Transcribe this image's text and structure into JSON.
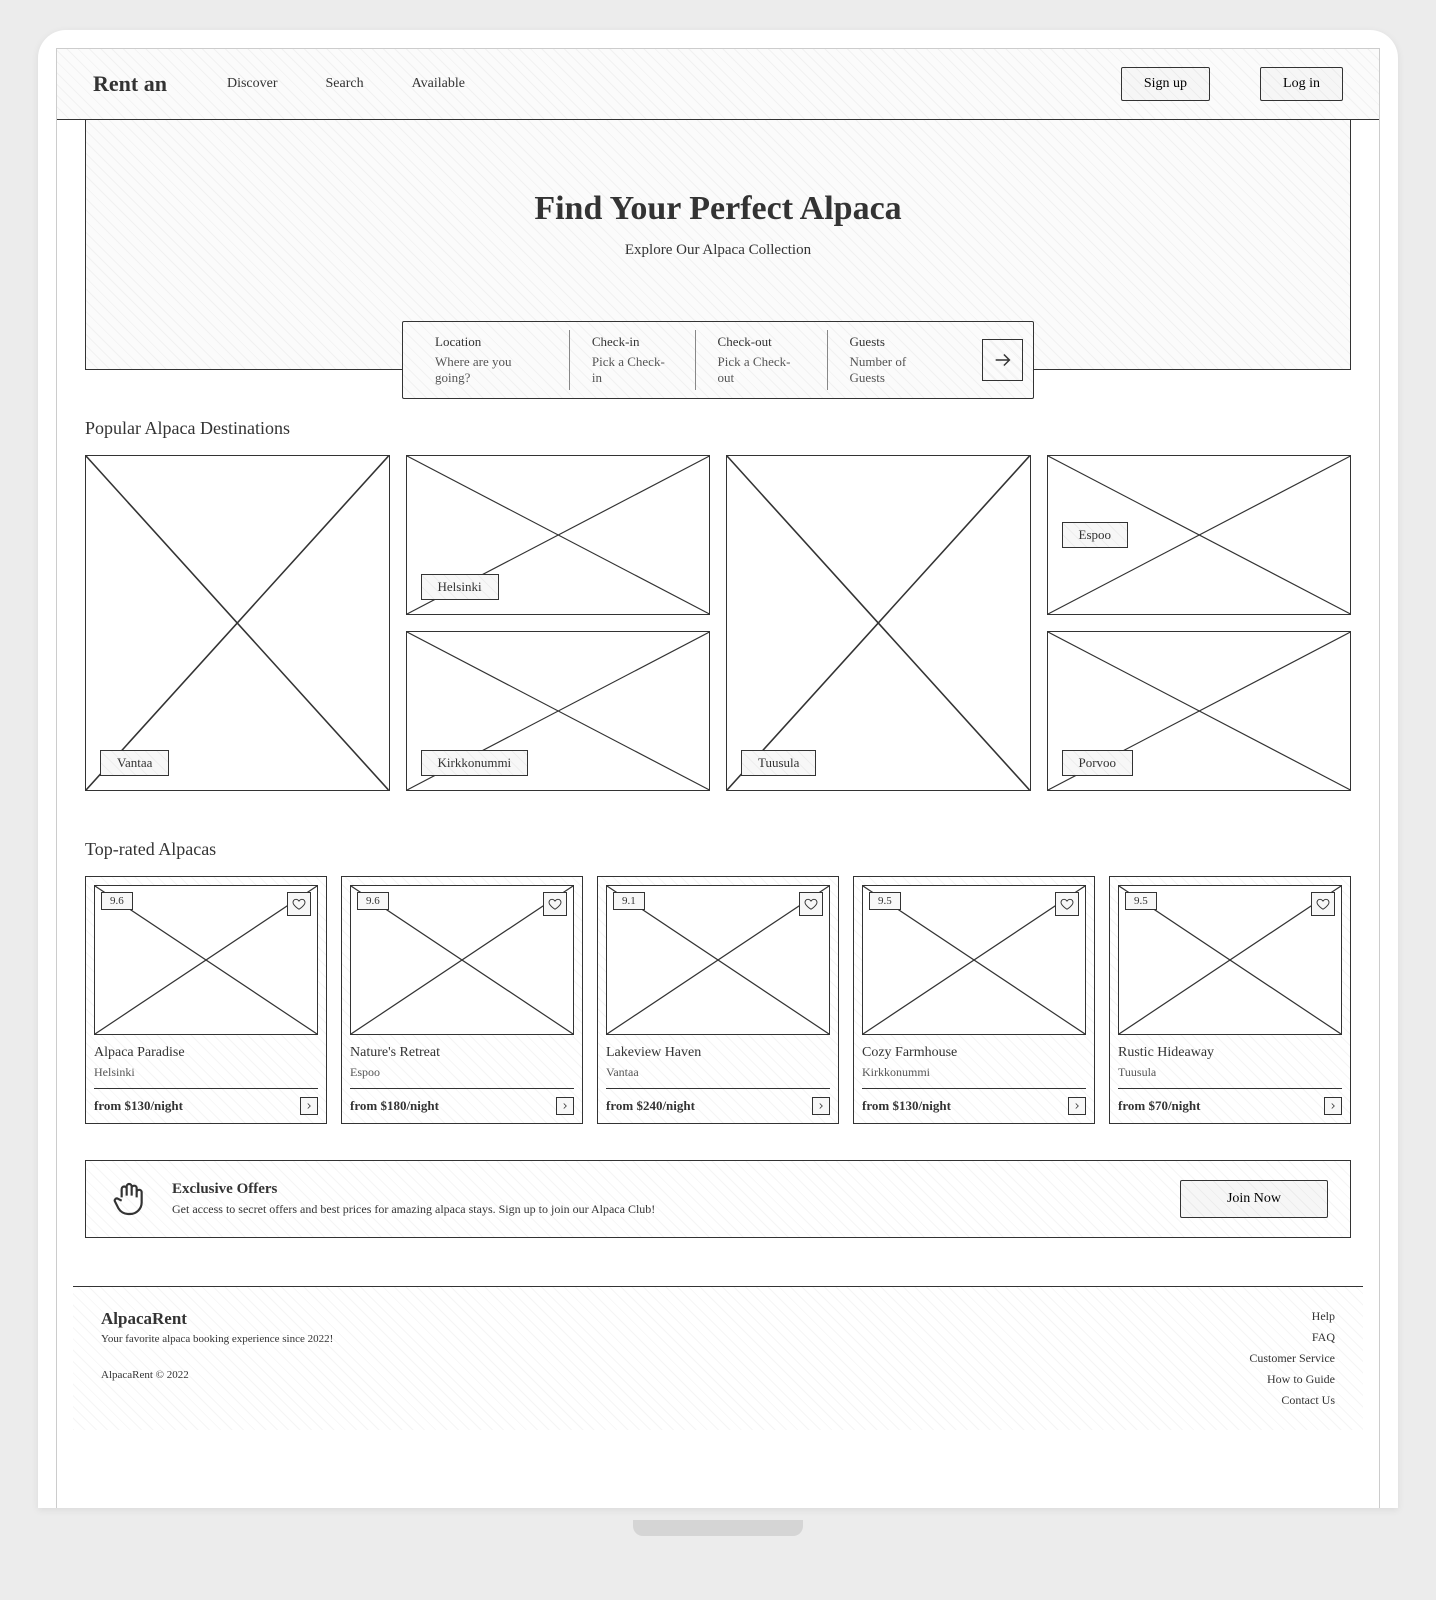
{
  "header": {
    "brand": "Rent an",
    "nav": [
      "Discover",
      "Search",
      "Available"
    ],
    "signup": "Sign up",
    "login": "Log in"
  },
  "hero": {
    "title": "Find Your Perfect Alpaca",
    "subtitle": "Explore Our Alpaca Collection"
  },
  "search": {
    "fields": [
      {
        "label": "Location",
        "placeholder": "Where are you going?"
      },
      {
        "label": "Check-in",
        "placeholder": "Pick a Check-in"
      },
      {
        "label": "Check-out",
        "placeholder": "Pick a Check-out"
      },
      {
        "label": "Guests",
        "placeholder": "Number of Guests"
      }
    ]
  },
  "destinations": {
    "title": "Popular Alpaca Destinations",
    "tiles": {
      "a": "Vantaa",
      "b": "Helsinki",
      "c": "Kirkkonummi",
      "d": "Tuusula",
      "e": "Espoo",
      "f": "Porvoo"
    }
  },
  "toprated": {
    "title": "Top-rated Alpacas",
    "items": [
      {
        "rating": "9.6",
        "name": "Alpaca Paradise",
        "location": "Helsinki",
        "price": "from $130/night"
      },
      {
        "rating": "9.6",
        "name": "Nature's Retreat",
        "location": "Espoo",
        "price": "from $180/night"
      },
      {
        "rating": "9.1",
        "name": "Lakeview Haven",
        "location": "Vantaa",
        "price": "from $240/night"
      },
      {
        "rating": "9.5",
        "name": "Cozy Farmhouse",
        "location": "Kirkkonummi",
        "price": "from $130/night"
      },
      {
        "rating": "9.5",
        "name": "Rustic Hideaway",
        "location": "Tuusula",
        "price": "from $70/night"
      }
    ]
  },
  "banner": {
    "title": "Exclusive Offers",
    "text": "Get access to secret offers and best prices for amazing alpaca stays. Sign up to join our Alpaca Club!",
    "cta": "Join Now"
  },
  "footer": {
    "brand": "AlpacaRent",
    "tagline": "Your favorite alpaca booking experience since 2022!",
    "copyright": "AlpacaRent © 2022",
    "links": [
      "Help",
      "FAQ",
      "Customer Service",
      "How to Guide",
      "Contact Us"
    ]
  },
  "style": {
    "border_color": "#333333",
    "hatch_bg": "#fbfbfb",
    "page_bg": "#ececec"
  }
}
